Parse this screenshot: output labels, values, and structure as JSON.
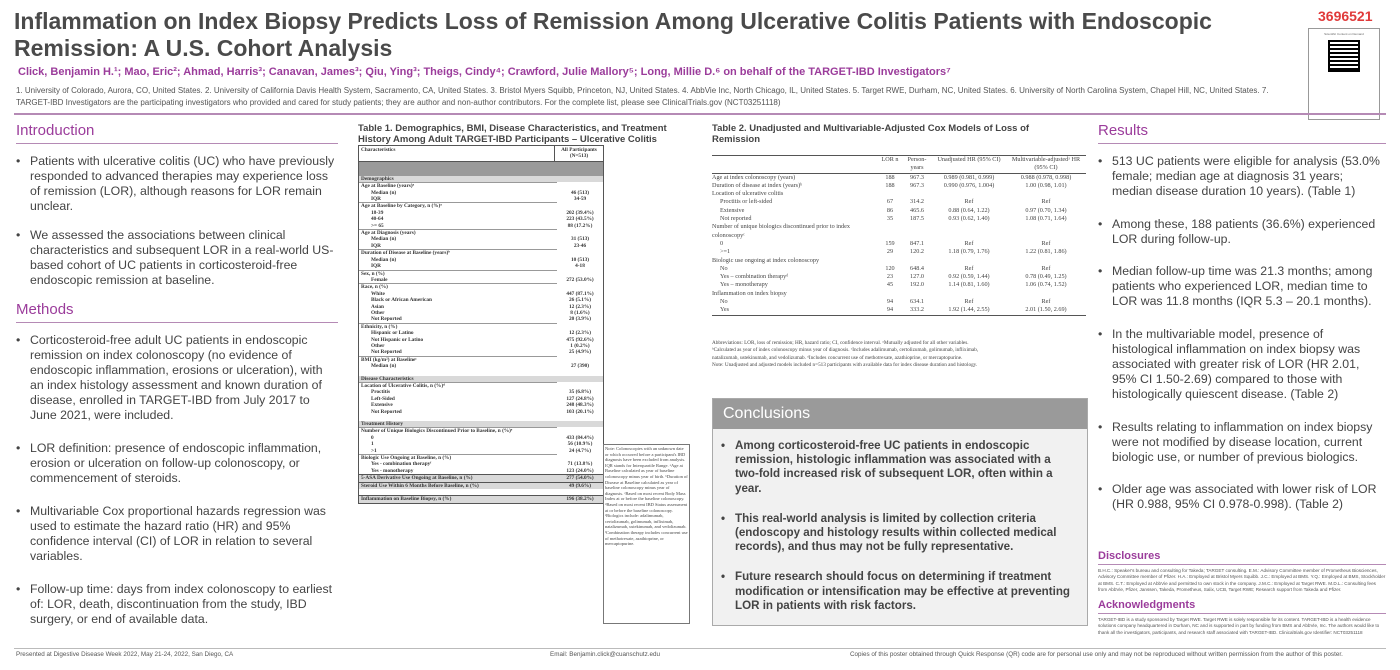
{
  "header": {
    "title": "Inflammation on Index Biopsy Predicts Loss of Remission Among Ulcerative Colitis Patients with Endoscopic Remission: A U.S. Cohort Analysis",
    "poster_id": "3696521",
    "authors": "Click, Benjamin H.¹; Mao, Eric²; Ahmad, Harris³; Canavan, James³; Qiu, Ying³; Theigs, Cindy⁴; Crawford, Julie Mallory⁵; Long, Millie D.⁶ on behalf of the TARGET-IBD Investigators⁷",
    "affiliations": "1. University of Colorado, Aurora, CO, United States. 2. University of California Davis Health System, Sacramento, CA, United States. 3. Bristol Myers Squibb, Princeton, NJ, United States. 4. AbbVie Inc, North Chicago, IL, United States. 5. Target RWE, Durham, NC, United States. 6. University of North Carolina System, Chapel Hill, NC, United States. 7. TARGET-IBD Investigators are the participating investigators who provided and cared for study patients; they are author and non-author contributors. For the complete list, please see ClinicalTrials.gov (NCT03251118)",
    "qr_caption": "Scientific Content on Demand"
  },
  "introduction": {
    "title": "Introduction",
    "bullets": [
      "Patients with ulcerative colitis (UC) who have previously responded to advanced therapies may experience loss of remission (LOR), although reasons for LOR remain unclear.",
      "We assessed the associations between clinical characteristics and subsequent LOR in a real-world US-based cohort of UC patients in corticosteroid-free endoscopic remission at baseline."
    ]
  },
  "methods": {
    "title": "Methods",
    "bullets": [
      "Corticosteroid-free adult UC patients in endoscopic remission on index colonoscopy (no evidence of endoscopic inflammation, erosions or ulceration), with an index histology assessment and known duration of disease, enrolled in TARGET-IBD from July 2017 to June 2021, were included.",
      "LOR definition: presence of endoscopic inflammation, erosion or ulceration on follow-up colonoscopy, or commencement of steroids.",
      "Multivariable Cox proportional hazards regression was used to estimate the hazard ratio (HR) and 95% confidence interval (CI) of LOR in relation to several variables.",
      "Follow-up time: days from index colonoscopy to earliest of: LOR, death, discontinuation from the study, IBD surgery, or end of available data."
    ]
  },
  "table1": {
    "title": "Table 1. Demographics, BMI, Disease Characteristics, and Treatment History Among Adult TARGET-IBD Participants – Ulcerative Colitis",
    "col_char": "Characteristics",
    "col_all": "All Participants (N=513)",
    "rows": [
      {
        "k": "sec",
        "label": "Demographics",
        "val": ""
      },
      {
        "k": "cat",
        "label": "Age at Baseline (years)ᵃ",
        "val": ""
      },
      {
        "k": "sub",
        "label": "Median (n)",
        "val": "46 (513)"
      },
      {
        "k": "sub",
        "label": "IQR",
        "val": "34-59"
      },
      {
        "k": "cat",
        "label": "Age at Baseline by Category, n (%)ᵃ",
        "val": ""
      },
      {
        "k": "sub",
        "label": "18-39",
        "val": "202 (39.4%)"
      },
      {
        "k": "sub",
        "label": "40-64",
        "val": "223 (43.5%)"
      },
      {
        "k": "sub",
        "label": ">= 65",
        "val": "88 (17.2%)"
      },
      {
        "k": "cat",
        "label": "Age at Diagnosis (years)",
        "val": ""
      },
      {
        "k": "sub",
        "label": "Median (n)",
        "val": "31 (513)"
      },
      {
        "k": "sub",
        "label": "IQR",
        "val": "23-46"
      },
      {
        "k": "cat",
        "label": "Duration of Disease at Baseline (years)ᵇ",
        "val": ""
      },
      {
        "k": "sub",
        "label": "Median (n)",
        "val": "10 (513)"
      },
      {
        "k": "sub",
        "label": "IQR",
        "val": "4-18"
      },
      {
        "k": "cat",
        "label": "Sex, n (%)",
        "val": ""
      },
      {
        "k": "sub",
        "label": "Female",
        "val": "272 (53.0%)"
      },
      {
        "k": "cat",
        "label": "Race, n (%)",
        "val": ""
      },
      {
        "k": "sub",
        "label": "White",
        "val": "447 (87.1%)"
      },
      {
        "k": "sub",
        "label": "Black or African American",
        "val": "26 (5.1%)"
      },
      {
        "k": "sub",
        "label": "Asian",
        "val": "12 (2.3%)"
      },
      {
        "k": "sub",
        "label": "Other",
        "val": "8 (1.6%)"
      },
      {
        "k": "sub",
        "label": "Not Reported",
        "val": "20 (3.9%)"
      },
      {
        "k": "cat",
        "label": "Ethnicity, n (%)",
        "val": ""
      },
      {
        "k": "sub",
        "label": "Hispanic or Latino",
        "val": "12 (2.3%)"
      },
      {
        "k": "sub",
        "label": "Not Hispanic or Latino",
        "val": "475 (92.6%)"
      },
      {
        "k": "sub",
        "label": "Other",
        "val": "1 (0.2%)"
      },
      {
        "k": "sub",
        "label": "Not Reported",
        "val": "25 (4.9%)"
      },
      {
        "k": "cat",
        "label": "BMI (kg/m²) at Baselineᶜ",
        "val": ""
      },
      {
        "k": "sub",
        "label": "Median (n)",
        "val": "27 (390)"
      },
      {
        "k": "gap",
        "label": "",
        "val": ""
      },
      {
        "k": "sec",
        "label": "Disease Characteristics",
        "val": ""
      },
      {
        "k": "cat",
        "label": "Location of Ulcerative Colitis, n (%)ᵈ",
        "val": ""
      },
      {
        "k": "sub",
        "label": "Proctitis",
        "val": "35 (6.8%)"
      },
      {
        "k": "sub",
        "label": "Left-Sided",
        "val": "127 (24.8%)"
      },
      {
        "k": "sub",
        "label": "Extensive",
        "val": "248 (48.3%)"
      },
      {
        "k": "sub",
        "label": "Not Reported",
        "val": "103 (20.1%)"
      },
      {
        "k": "gap",
        "label": "",
        "val": ""
      },
      {
        "k": "sec",
        "label": "Treatment History",
        "val": ""
      },
      {
        "k": "cat",
        "label": "Number of Unique Biologics Discontinued Prior to Baseline, n (%)ᵉ",
        "val": ""
      },
      {
        "k": "sub",
        "label": "0",
        "val": "433 (84.4%)"
      },
      {
        "k": "sub",
        "label": "1",
        "val": "56 (10.9%)"
      },
      {
        "k": "sub",
        "label": ">1",
        "val": "24 (4.7%)"
      },
      {
        "k": "cat",
        "label": "Biologic Use Ongoing at Baseline, n (%)",
        "val": ""
      },
      {
        "k": "sub",
        "label": "Yes - combination therapyᶠ",
        "val": "71 (13.8%)"
      },
      {
        "k": "sub",
        "label": "Yes - monotherapy",
        "val": "123 (24.0%)"
      },
      {
        "k": "big",
        "label": "5-ASA Derivative Use Ongoing at Baseline, n (%)",
        "val": "277 (54.0%)"
      },
      {
        "k": "big",
        "label": "Steroid Use Within 6 Months Before Baseline, n (%)",
        "val": "49 (9.6%)"
      },
      {
        "k": "gap",
        "label": "",
        "val": ""
      },
      {
        "k": "big",
        "label": "Inflammation on Baseline Biopsy, n (%)",
        "val": "196 (38.2%)"
      }
    ],
    "note": "Note: Colonoscopies with an unknown date or which occurred before a participant's IBD diagnosis have been excluded from analysis. IQR stands for Interquartile Range. ᵃAge at Baseline calculated as year of baseline colonoscopy minus year of birth. ᵇDuration of Disease at Baseline calculated as year of baseline colonoscopy minus year of diagnosis. ᶜBased on most recent Body Mass Index at or before the baseline colonoscopy. ᵈBased on most recent IBD Status assessment at or before the baseline colonoscopy. ᵉBiologics include: adalimumab, certolizumab, golimumab, infliximab, natalizumab, ustekinumab, and vedolizumab. ᶠCombination therapy includes concurrent use of methotrexate, azathioprine, or mercaptopurine."
  },
  "table2": {
    "title": "Table 2. Unadjusted and Multivariable-Adjusted Cox Models of Loss of Remission",
    "headers": [
      "",
      "LOR n",
      "Person-years",
      "Unadjusted HR (95% CI)",
      "Multivariable-adjustedᵃ HR (95% CI)"
    ],
    "rows": [
      {
        "label": "Age at index colonoscopy (years)",
        "n": "188",
        "p": "967.3",
        "u": "0.989 (0.981, 0.999)",
        "m": "0.988 (0.978, 0.998)",
        "ind": false
      },
      {
        "label": "Duration of disease at index (years)ᵇ",
        "n": "188",
        "p": "967.3",
        "u": "0.990 (0.976, 1.004)",
        "m": "1.00 (0.98, 1.01)",
        "ind": false
      },
      {
        "label": "Location of ulcerative colitis",
        "n": "",
        "p": "",
        "u": "",
        "m": "",
        "ind": false
      },
      {
        "label": "Proctitis or left-sided",
        "n": "67",
        "p": "314.2",
        "u": "Ref",
        "m": "Ref",
        "ind": true
      },
      {
        "label": "Extensive",
        "n": "86",
        "p": "465.6",
        "u": "0.88 (0.64, 1.22)",
        "m": "0.97 (0.70, 1.34)",
        "ind": true
      },
      {
        "label": "Not reported",
        "n": "35",
        "p": "187.5",
        "u": "0.93 (0.62, 1.40)",
        "m": "1.08 (0.71, 1.64)",
        "ind": true
      },
      {
        "label": "Number of unique biologics discontinued prior to index colonoscopyᶜ",
        "n": "",
        "p": "",
        "u": "",
        "m": "",
        "ind": false
      },
      {
        "label": "0",
        "n": "159",
        "p": "847.1",
        "u": "Ref",
        "m": "Ref",
        "ind": true
      },
      {
        "label": ">=1",
        "n": "29",
        "p": "120.2",
        "u": "1.18 (0.79, 1.76)",
        "m": "1.22 (0.81, 1.86)",
        "ind": true
      },
      {
        "label": "Biologic use ongoing at index colonoscopy",
        "n": "",
        "p": "",
        "u": "",
        "m": "",
        "ind": false
      },
      {
        "label": "No",
        "n": "120",
        "p": "648.4",
        "u": "Ref",
        "m": "Ref",
        "ind": true
      },
      {
        "label": "Yes – combination therapyᵈ",
        "n": "23",
        "p": "127.0",
        "u": "0.92 (0.59, 1.44)",
        "m": "0.78 (0.49, 1.25)",
        "ind": true
      },
      {
        "label": "Yes – monotherapy",
        "n": "45",
        "p": "192.0",
        "u": "1.14 (0.81, 1.60)",
        "m": "1.06 (0.74, 1.52)",
        "ind": true
      },
      {
        "label": "Inflammation on index biopsy",
        "n": "",
        "p": "",
        "u": "",
        "m": "",
        "ind": false
      },
      {
        "label": "No",
        "n": "94",
        "p": "634.1",
        "u": "Ref",
        "m": "Ref",
        "ind": true
      },
      {
        "label": "Yes",
        "n": "94",
        "p": "333.2",
        "u": "1.92 (1.44, 2.55)",
        "m": "2.01 (1.50, 2.69)",
        "ind": true
      }
    ],
    "notes": [
      "Abbreviations: LOR, loss of remission; HR, hazard ratio; CI, confidence interval. ᵃMutually adjusted for all other variables.",
      "ᵇCalculated as year of index colonoscopy minus year of diagnosis. ᶜIncludes adalimumab, certolizumab, golimumab, infliximab,",
      "natalizumab, ustekinumab, and vedolizumab. ᵈIncludes concurrent use of methotrexate, azathioprine, or mercaptopurine.",
      "Note: Unadjusted and adjusted models included n=513 participants with available data for index disease duration and histology."
    ]
  },
  "conclusions": {
    "title": "Conclusions",
    "bullets": [
      "Among corticosteroid-free UC patients in endoscopic remission, histologic inflammation was associated with a two-fold increased risk of subsequent LOR, often within a year.",
      "This real-world analysis is limited by collection criteria (endoscopy and histology results within collected medical records), and thus may not be fully representative.",
      "Future research should focus on determining if treatment modification or intensification may be effective at preventing LOR in patients with risk factors."
    ]
  },
  "results": {
    "title": "Results",
    "bullets": [
      "513 UC patients were eligible for analysis (53.0% female; median age at diagnosis 31 years; median disease duration 10 years). (Table 1)",
      "Among these, 188 patients (36.6%) experienced LOR during follow-up.",
      "Median follow-up time was 21.3 months; among patients who experienced LOR, median time to LOR was 11.8 months (IQR 5.3 – 20.1 months).",
      "In the multivariable model, presence of histological inflammation on index biopsy was associated with greater risk of LOR (HR 2.01, 95% CI 1.50-2.69) compared to those with histologically quiescent disease. (Table 2)",
      "Results relating to inflammation on index biopsy were not modified by disease location, current biologic use, or number of previous biologics.",
      "Older age was associated with lower risk of LOR (HR 0.988, 95% CI 0.978-0.998). (Table 2)"
    ]
  },
  "disclosures": {
    "title": "Disclosures",
    "text": "B.H.C.: Speaker's bureau and consulting for Takeda; TARGET consulting. E.M.: Advisory Committee member of Prometheus Biosciences, Advisory Committee member of Pfizer. H.A.: Employed at Bristol Myers Squibb. J.C.: Employed at BMS. Y.Q.: Employed at BMS, Stockholder at BMS. C.T.: Employed at AbbVie and permitted to own stock in the company. J.M.C.: Employed at Target RWE. M.D.L.: Consulting fees from AbbVie, Pfizer, Janssen, Takeda, Prometheus, Salix, UCB, Target RWE; Research support from Takeda and Pfizer."
  },
  "acknowledgments": {
    "title": "Acknowledgments",
    "text": "TARGET-IBD is a study sponsored by Target RWE. Target RWE is solely responsible for its content. TARGET-IBD is a health evidence solutions company headquartered in Durham, NC and is supported in part by funding from BMS and AbbVie, Inc. The authors would like to thank all the investigators, participants, and research staff associated with TARGET-IBD. Clinicaltrials.gov Identifier: NCT03251118"
  },
  "footer": {
    "left": "Presented at Digestive Disease Week 2022, May 21-24, 2022, San Diego, CA",
    "center": "Email: Benjamin.click@cuanschutz.edu",
    "right": "Copies of this poster obtained through Quick Response (QR) code are for personal use only and may not be reproduced without written permission from the author of this poster."
  },
  "colors": {
    "accent": "#9b3c9b",
    "poster_id": "#e03a3a",
    "conclusion_header": "#9a9a9a"
  }
}
